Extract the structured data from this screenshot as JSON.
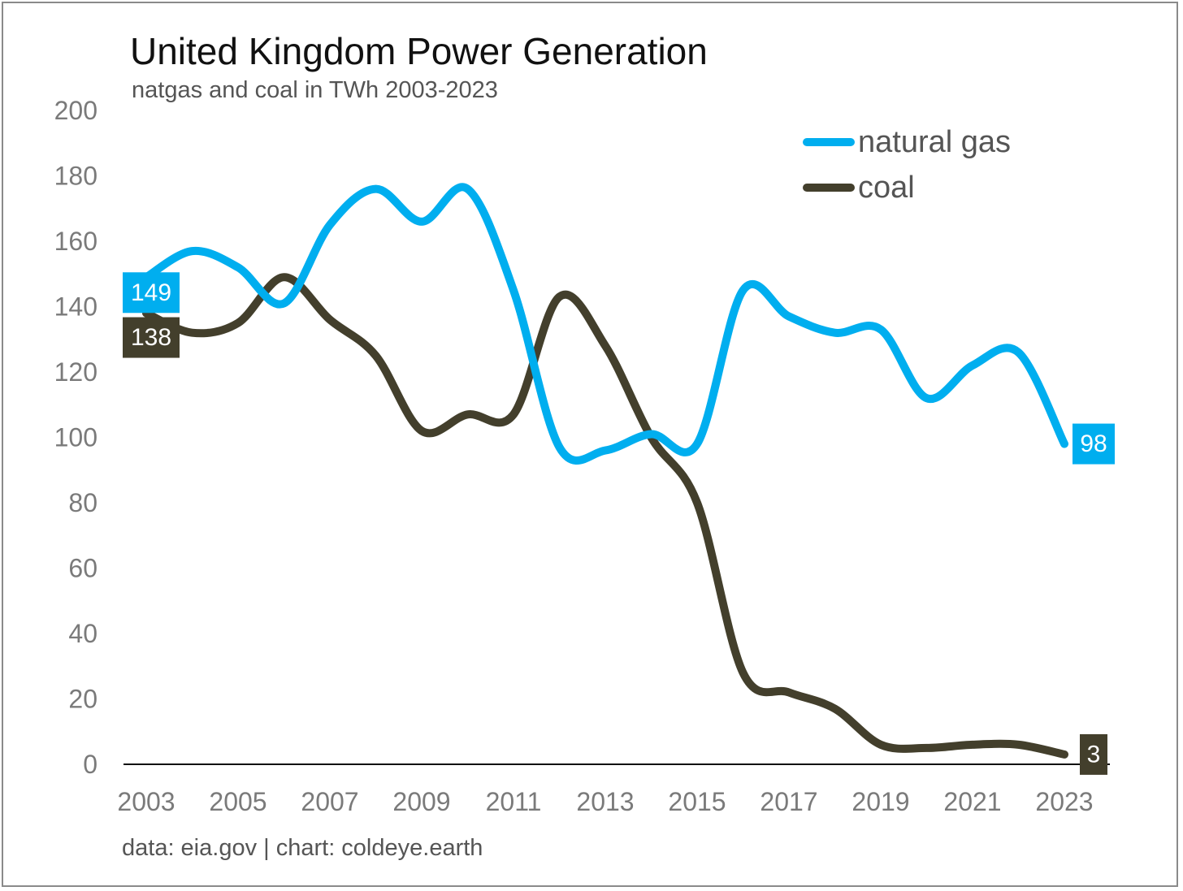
{
  "chart_data": {
    "type": "line",
    "title": "United Kingdom Power Generation",
    "subtitle": "natgas and coal in TWh 2003-2023",
    "source": "data: eia.gov | chart: coldeye.earth",
    "x": [
      2003,
      2004,
      2005,
      2006,
      2007,
      2008,
      2009,
      2010,
      2011,
      2012,
      2013,
      2014,
      2015,
      2016,
      2017,
      2018,
      2019,
      2020,
      2021,
      2022,
      2023
    ],
    "series": [
      {
        "name": "natural gas",
        "color": "#00aeef",
        "values": [
          149,
          157,
          152,
          141,
          165,
          176,
          166,
          176,
          145,
          97,
          96,
          101,
          98,
          145,
          137,
          132,
          133,
          112,
          122,
          126,
          98
        ]
      },
      {
        "name": "coal",
        "color": "#433f2c",
        "values": [
          138,
          132,
          135,
          149,
          136,
          125,
          102,
          107,
          107,
          143,
          128,
          100,
          80,
          28,
          22,
          17,
          6,
          5,
          6,
          6,
          3
        ]
      }
    ],
    "data_labels": [
      {
        "series": "natural gas",
        "text": "149",
        "position": "start"
      },
      {
        "series": "coal",
        "text": "138",
        "position": "start"
      },
      {
        "series": "natural gas",
        "text": "98",
        "position": "end"
      },
      {
        "series": "coal",
        "text": "3",
        "position": "end"
      }
    ],
    "ylim": [
      0,
      200
    ],
    "yticks": [
      "0",
      "20",
      "40",
      "60",
      "80",
      "100",
      "120",
      "140",
      "160",
      "180",
      "200"
    ],
    "xticks": [
      "2003",
      "2005",
      "2007",
      "2009",
      "2011",
      "2013",
      "2015",
      "2017",
      "2019",
      "2021",
      "2023"
    ],
    "xlabel": "",
    "ylabel": "",
    "legend_position": "top-right",
    "grid": false
  }
}
